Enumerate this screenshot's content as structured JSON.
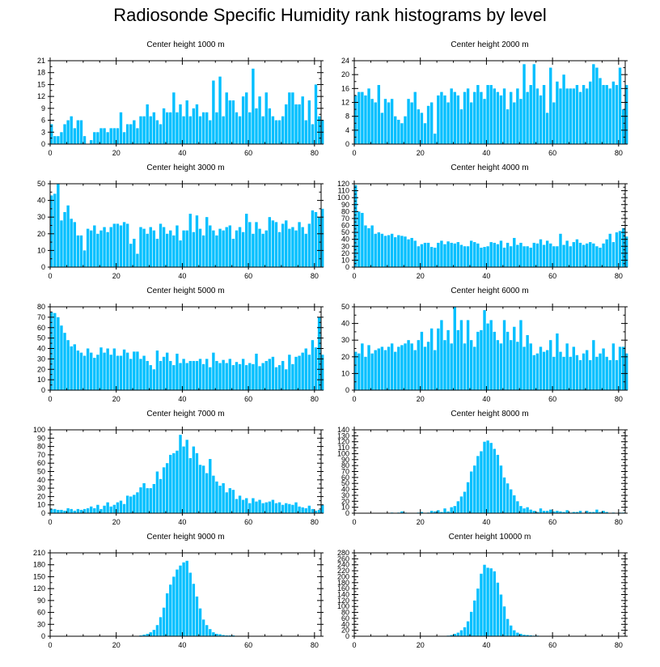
{
  "title": "Radiosonde Specific Humidity rank histograms by level",
  "bar_color": "#00bfff",
  "chart_data": [
    {
      "type": "bar",
      "title": "Center height 1000 m",
      "xlabel": "",
      "ylabel": "",
      "xlim": [
        0,
        82
      ],
      "ylim": [
        0,
        21
      ],
      "yticks": [
        0,
        3,
        6,
        9,
        12,
        15,
        18,
        21
      ],
      "xticks": [
        0,
        20,
        40,
        60,
        80
      ],
      "values": [
        5,
        2,
        2,
        3,
        5,
        6,
        7,
        4,
        6,
        6,
        2,
        0,
        1,
        3,
        3,
        4,
        4,
        3,
        4,
        4,
        4,
        8,
        3,
        5,
        5,
        6,
        4,
        7,
        7,
        10,
        7,
        8,
        6,
        5,
        9,
        8,
        8,
        13,
        8,
        10,
        7,
        11,
        7,
        9,
        10,
        7,
        8,
        8,
        6,
        16,
        8,
        17,
        7,
        13,
        11,
        11,
        8,
        7,
        12,
        13,
        8,
        19,
        9,
        12,
        7,
        13,
        9,
        7,
        6,
        6,
        7,
        10,
        13,
        13,
        10,
        10,
        12,
        6,
        11,
        5,
        15,
        7,
        6
      ]
    },
    {
      "type": "bar",
      "title": "Center height 2000 m",
      "xlabel": "",
      "ylabel": "",
      "xlim": [
        0,
        82
      ],
      "ylim": [
        0,
        24
      ],
      "yticks": [
        0,
        4,
        8,
        12,
        16,
        20,
        24
      ],
      "xticks": [
        0,
        20,
        40,
        60,
        80
      ],
      "values": [
        14,
        15,
        15,
        14,
        16,
        13,
        12,
        17,
        9,
        13,
        12,
        13,
        8,
        7,
        6,
        8,
        13,
        12,
        15,
        10,
        9,
        6,
        11,
        12,
        3,
        14,
        15,
        14,
        12,
        16,
        15,
        14,
        10,
        15,
        16,
        12,
        15,
        17,
        15,
        13,
        17,
        17,
        16,
        15,
        14,
        16,
        10,
        15,
        12,
        16,
        13,
        23,
        15,
        17,
        23,
        16,
        14,
        17,
        9,
        22,
        12,
        18,
        16,
        20,
        16,
        16,
        16,
        17,
        15,
        17,
        16,
        18,
        23,
        22,
        19,
        17,
        17,
        16,
        18,
        17,
        22,
        10,
        17
      ]
    },
    {
      "type": "bar",
      "title": "Center height 3000 m",
      "xlabel": "",
      "ylabel": "",
      "xlim": [
        0,
        82
      ],
      "ylim": [
        0,
        50
      ],
      "yticks": [
        0,
        10,
        20,
        30,
        40,
        50
      ],
      "xticks": [
        0,
        20,
        40,
        60,
        80
      ],
      "values": [
        43,
        44,
        50,
        28,
        33,
        37,
        29,
        27,
        19,
        19,
        10,
        23,
        22,
        25,
        20,
        22,
        24,
        21,
        24,
        26,
        26,
        25,
        27,
        26,
        14,
        17,
        8,
        24,
        23,
        20,
        24,
        22,
        17,
        26,
        24,
        20,
        22,
        19,
        25,
        16,
        22,
        22,
        32,
        21,
        31,
        23,
        19,
        30,
        25,
        22,
        19,
        23,
        22,
        24,
        25,
        17,
        22,
        24,
        21,
        32,
        27,
        20,
        27,
        23,
        20,
        22,
        30,
        28,
        27,
        21,
        26,
        28,
        23,
        24,
        22,
        27,
        24,
        20,
        26,
        34,
        33,
        30,
        35
      ]
    },
    {
      "type": "bar",
      "title": "Center height 4000 m",
      "xlabel": "",
      "ylabel": "",
      "xlim": [
        0,
        82
      ],
      "ylim": [
        0,
        120
      ],
      "yticks": [
        0,
        10,
        20,
        30,
        40,
        50,
        60,
        70,
        80,
        90,
        100,
        110,
        120
      ],
      "xticks": [
        0,
        20,
        40,
        60,
        80
      ],
      "values": [
        118,
        80,
        78,
        60,
        56,
        60,
        48,
        50,
        48,
        45,
        46,
        48,
        43,
        46,
        45,
        44,
        40,
        42,
        38,
        30,
        33,
        35,
        35,
        29,
        28,
        35,
        38,
        33,
        37,
        35,
        34,
        36,
        32,
        30,
        30,
        38,
        36,
        34,
        28,
        29,
        30,
        36,
        35,
        33,
        38,
        28,
        35,
        30,
        42,
        32,
        35,
        30,
        30,
        28,
        35,
        34,
        40,
        32,
        38,
        34,
        30,
        30,
        48,
        32,
        38,
        30,
        36,
        40,
        35,
        32,
        34,
        36,
        34,
        30,
        28,
        34,
        40,
        48,
        36,
        50,
        52,
        56,
        44
      ]
    },
    {
      "type": "bar",
      "title": "Center height 5000 m",
      "xlabel": "",
      "ylabel": "",
      "xlim": [
        0,
        82
      ],
      "ylim": [
        0,
        80
      ],
      "yticks": [
        0,
        10,
        20,
        30,
        40,
        50,
        60,
        70,
        80
      ],
      "xticks": [
        0,
        20,
        40,
        60,
        80
      ],
      "values": [
        75,
        74,
        70,
        62,
        55,
        48,
        42,
        44,
        38,
        36,
        33,
        40,
        36,
        31,
        34,
        41,
        36,
        40,
        34,
        40,
        33,
        33,
        39,
        36,
        30,
        37,
        37,
        30,
        33,
        28,
        24,
        20,
        38,
        28,
        32,
        36,
        28,
        24,
        35,
        26,
        30,
        26,
        28,
        28,
        28,
        30,
        25,
        30,
        22,
        36,
        28,
        26,
        29,
        26,
        30,
        24,
        27,
        25,
        30,
        24,
        26,
        25,
        35,
        23,
        26,
        28,
        30,
        32,
        22,
        24,
        28,
        20,
        34,
        25,
        32,
        33,
        36,
        40,
        34,
        48,
        41,
        70,
        34
      ]
    },
    {
      "type": "bar",
      "title": "Center height 6000 m",
      "xlabel": "",
      "ylabel": "",
      "xlim": [
        0,
        82
      ],
      "ylim": [
        0,
        50
      ],
      "yticks": [
        0,
        10,
        20,
        30,
        40,
        50
      ],
      "xticks": [
        0,
        20,
        40,
        60,
        80
      ],
      "values": [
        23,
        22,
        28,
        20,
        27,
        22,
        24,
        25,
        26,
        24,
        26,
        28,
        23,
        26,
        27,
        28,
        30,
        28,
        24,
        30,
        35,
        26,
        29,
        37,
        24,
        37,
        42,
        30,
        36,
        28,
        50,
        36,
        42,
        28,
        42,
        30,
        26,
        35,
        36,
        48,
        40,
        42,
        35,
        30,
        28,
        42,
        35,
        30,
        38,
        29,
        42,
        26,
        33,
        28,
        21,
        22,
        26,
        23,
        24,
        30,
        20,
        34,
        23,
        20,
        28,
        20,
        26,
        21,
        18,
        22,
        24,
        18,
        30,
        20,
        22,
        25,
        20,
        18,
        28,
        18,
        26,
        26,
        22
      ]
    },
    {
      "type": "bar",
      "title": "Center height 7000 m",
      "xlabel": "",
      "ylabel": "",
      "xlim": [
        0,
        82
      ],
      "ylim": [
        0,
        100
      ],
      "yticks": [
        0,
        10,
        20,
        30,
        40,
        50,
        60,
        70,
        80,
        90,
        100
      ],
      "xticks": [
        0,
        20,
        40,
        60,
        80
      ],
      "values": [
        5,
        5,
        4,
        4,
        3,
        6,
        5,
        3,
        5,
        4,
        5,
        6,
        8,
        6,
        10,
        5,
        9,
        13,
        8,
        10,
        13,
        15,
        11,
        21,
        20,
        22,
        25,
        31,
        36,
        30,
        30,
        35,
        50,
        41,
        55,
        60,
        70,
        72,
        75,
        94,
        80,
        88,
        66,
        80,
        72,
        58,
        57,
        48,
        65,
        45,
        38,
        33,
        36,
        25,
        30,
        28,
        17,
        21,
        16,
        18,
        12,
        18,
        14,
        16,
        12,
        13,
        14,
        16,
        12,
        13,
        10,
        12,
        11,
        10,
        13,
        8,
        7,
        6,
        9,
        5,
        3,
        4,
        10
      ]
    },
    {
      "type": "bar",
      "title": "Center height 8000 m",
      "xlabel": "",
      "ylabel": "",
      "xlim": [
        0,
        82
      ],
      "ylim": [
        0,
        140
      ],
      "yticks": [
        0,
        10,
        20,
        30,
        40,
        50,
        60,
        70,
        80,
        90,
        100,
        110,
        120,
        130,
        140
      ],
      "xticks": [
        0,
        20,
        40,
        60,
        80
      ],
      "values": [
        0,
        0,
        0,
        0,
        0,
        0,
        0,
        0,
        0,
        0,
        0,
        1,
        0,
        1,
        3,
        1,
        0,
        0,
        0,
        1,
        2,
        0,
        1,
        4,
        3,
        5,
        2,
        8,
        3,
        10,
        12,
        20,
        28,
        36,
        52,
        70,
        80,
        96,
        104,
        120,
        122,
        118,
        108,
        98,
        80,
        60,
        50,
        40,
        30,
        20,
        12,
        8,
        10,
        6,
        4,
        2,
        8,
        4,
        4,
        6,
        3,
        4,
        3,
        2,
        5,
        1,
        2,
        2,
        4,
        0,
        4,
        2,
        2,
        6,
        2,
        4,
        2,
        0,
        1,
        0,
        1,
        1,
        0
      ]
    },
    {
      "type": "bar",
      "title": "Center height 9000 m",
      "xlabel": "",
      "ylabel": "",
      "xlim": [
        0,
        82
      ],
      "ylim": [
        0,
        210
      ],
      "yticks": [
        0,
        30,
        60,
        90,
        120,
        150,
        180,
        210
      ],
      "xticks": [
        0,
        20,
        40,
        60,
        80
      ],
      "values": [
        0,
        0,
        0,
        0,
        0,
        0,
        0,
        0,
        0,
        0,
        0,
        0,
        0,
        0,
        0,
        0,
        0,
        0,
        0,
        0,
        0,
        0,
        0,
        0,
        0,
        0,
        1,
        2,
        4,
        6,
        10,
        16,
        28,
        48,
        72,
        108,
        130,
        150,
        168,
        178,
        186,
        190,
        160,
        132,
        100,
        70,
        42,
        28,
        18,
        10,
        6,
        5,
        3,
        2,
        2,
        2,
        1,
        1,
        0,
        0,
        0,
        0,
        0,
        0,
        0,
        0,
        0,
        0,
        0,
        0,
        0,
        0,
        0,
        0,
        0,
        0,
        0,
        0,
        0,
        0,
        0,
        0,
        0
      ]
    },
    {
      "type": "bar",
      "title": "Center height 10000 m",
      "xlabel": "",
      "ylabel": "",
      "xlim": [
        0,
        82
      ],
      "ylim": [
        0,
        280
      ],
      "yticks": [
        0,
        20,
        40,
        60,
        80,
        100,
        120,
        140,
        160,
        180,
        200,
        220,
        240,
        260,
        280
      ],
      "xticks": [
        0,
        20,
        40,
        60,
        80
      ],
      "values": [
        0,
        0,
        0,
        0,
        0,
        0,
        0,
        0,
        0,
        0,
        0,
        0,
        0,
        0,
        0,
        0,
        0,
        0,
        0,
        0,
        0,
        0,
        0,
        0,
        0,
        0,
        0,
        0,
        2,
        4,
        8,
        12,
        20,
        30,
        50,
        82,
        120,
        160,
        210,
        240,
        230,
        228,
        218,
        180,
        140,
        100,
        58,
        36,
        20,
        12,
        8,
        5,
        4,
        3,
        2,
        2,
        1,
        1,
        0,
        0,
        0,
        0,
        0,
        0,
        0,
        0,
        0,
        0,
        0,
        0,
        0,
        0,
        0,
        0,
        0,
        0,
        0,
        0,
        0,
        0,
        0,
        0,
        0
      ]
    }
  ]
}
